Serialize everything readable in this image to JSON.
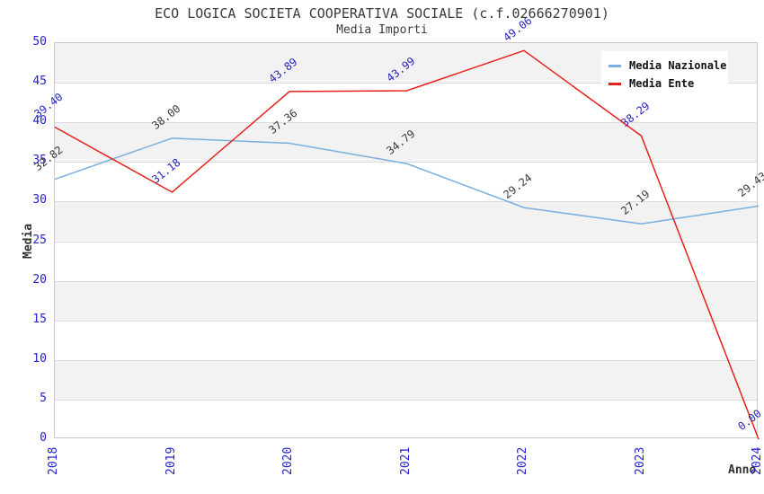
{
  "chart_data": {
    "type": "line",
    "title": "ECO LOGICA SOCIETA COOPERATIVA SOCIALE (c.f.02666270901)",
    "subtitle": "Media Importi",
    "xlabel": "Anno",
    "ylabel": "Media",
    "x": [
      "2018",
      "2019",
      "2020",
      "2021",
      "2022",
      "2023",
      "2024"
    ],
    "ylim": [
      0,
      50
    ],
    "ytick_step": 5,
    "grid": true,
    "legend_position": "top-right",
    "series": [
      {
        "name": "Media Nazionale",
        "color": "#7AAFE0",
        "label_color": "#3a3a3a",
        "values": [
          32.82,
          38.0,
          37.36,
          34.79,
          29.24,
          27.19,
          29.43
        ]
      },
      {
        "name": "Media Ente",
        "color": "#E8211A",
        "label_color": "#2626BB",
        "values": [
          39.4,
          31.18,
          43.89,
          43.99,
          49.06,
          38.29,
          0.0
        ]
      }
    ],
    "colors": {
      "tick_label": "#2222CC",
      "band": "#F2F2F2",
      "gridline": "#DCDCDC",
      "plot_border": "#C9C9C9",
      "title_text": "#3A3A3A",
      "axis_label_text": "#333333",
      "legend_text": "#111111"
    }
  }
}
